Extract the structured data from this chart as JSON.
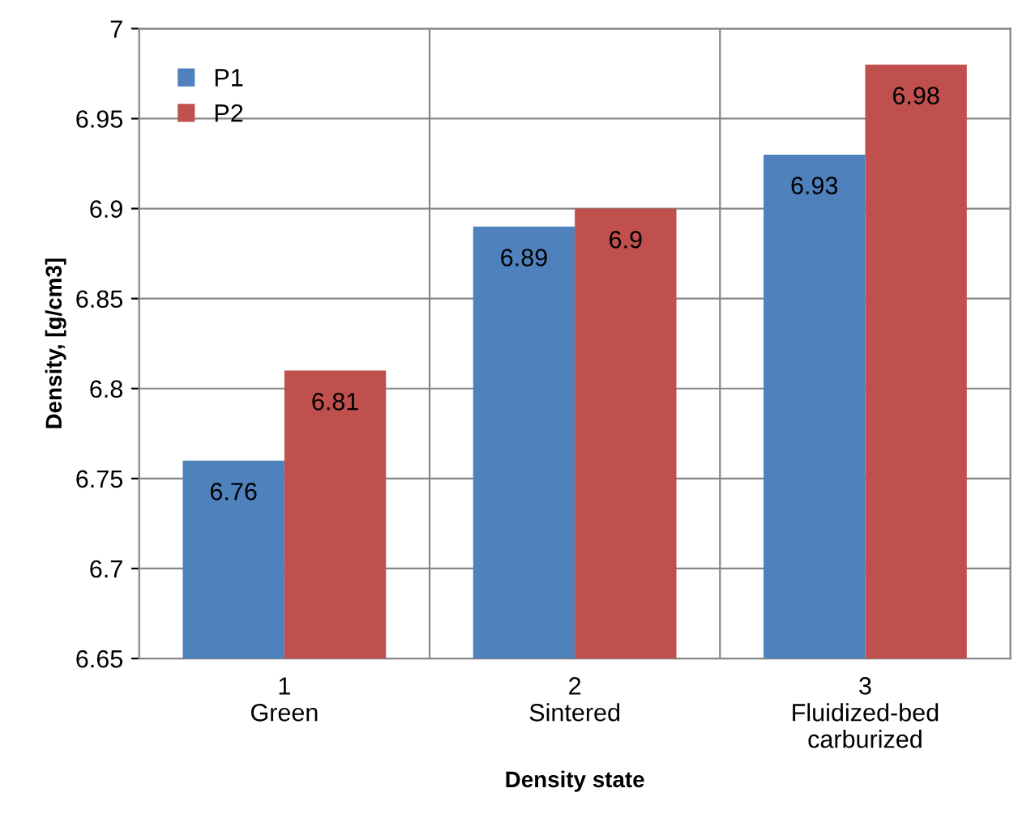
{
  "chart_data": {
    "type": "bar",
    "xlabel": "Density state",
    "ylabel": "Density, [g/cm3]",
    "categories": [
      "1\nGreen",
      "2\nSintered",
      "3\nFluidized-bed\ncarburized"
    ],
    "series": [
      {
        "name": "P1",
        "color": "#4f81bd",
        "values": [
          6.76,
          6.89,
          6.93
        ]
      },
      {
        "name": "P2",
        "color": "#c0504d",
        "values": [
          6.81,
          6.9,
          6.98
        ]
      }
    ],
    "ylim": [
      6.65,
      7
    ],
    "yticks": [
      6.65,
      6.7,
      6.75,
      6.8,
      6.85,
      6.9,
      6.95,
      7
    ],
    "grid": true,
    "legend": "top left",
    "data_labels": true
  }
}
